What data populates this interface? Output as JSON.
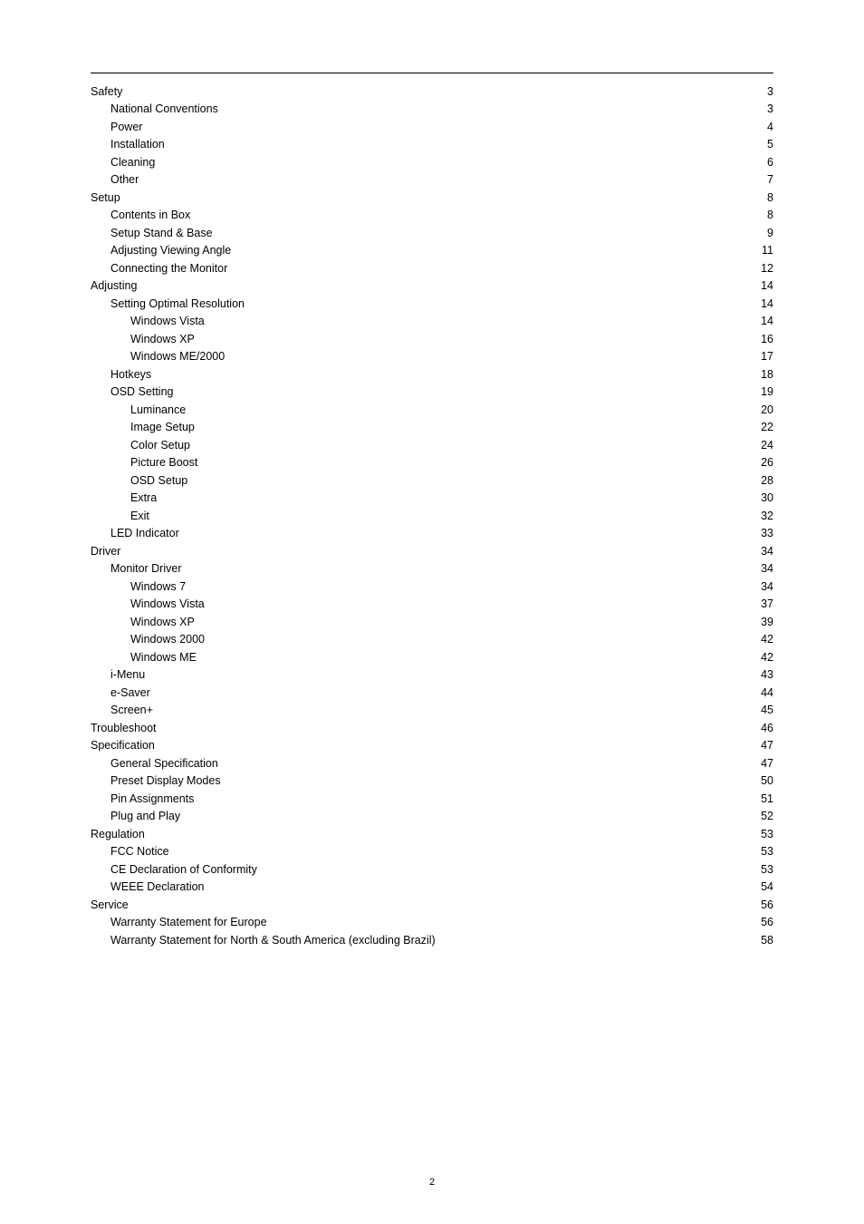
{
  "page_number": "2",
  "toc": [
    {
      "level": 0,
      "label": "Safety",
      "page": "3"
    },
    {
      "level": 1,
      "label": "National Conventions",
      "page": "3"
    },
    {
      "level": 1,
      "label": "Power",
      "page": "4"
    },
    {
      "level": 1,
      "label": "Installation",
      "page": "5"
    },
    {
      "level": 1,
      "label": "Cleaning",
      "page": "6"
    },
    {
      "level": 1,
      "label": "Other",
      "page": "7"
    },
    {
      "level": 0,
      "label": "Setup",
      "page": "8"
    },
    {
      "level": 1,
      "label": "Contents in Box",
      "page": "8"
    },
    {
      "level": 1,
      "label": "Setup Stand & Base",
      "page": "9"
    },
    {
      "level": 1,
      "label": "Adjusting Viewing Angle",
      "page": "11"
    },
    {
      "level": 1,
      "label": "Connecting the Monitor",
      "page": "12"
    },
    {
      "level": 0,
      "label": "Adjusting",
      "page": "14"
    },
    {
      "level": 1,
      "label": "Setting Optimal Resolution",
      "page": "14"
    },
    {
      "level": 2,
      "label": "Windows Vista",
      "page": "14"
    },
    {
      "level": 2,
      "label": "Windows XP",
      "page": "16"
    },
    {
      "level": 2,
      "label": "Windows ME/2000",
      "page": "17"
    },
    {
      "level": 1,
      "label": "Hotkeys",
      "page": "18"
    },
    {
      "level": 1,
      "label": "OSD Setting",
      "page": "19"
    },
    {
      "level": 2,
      "label": "Luminance",
      "page": "20"
    },
    {
      "level": 2,
      "label": "Image Setup",
      "page": "22"
    },
    {
      "level": 2,
      "label": "Color Setup",
      "page": "24"
    },
    {
      "level": 2,
      "label": "Picture Boost",
      "page": "26"
    },
    {
      "level": 2,
      "label": "OSD Setup",
      "page": "28"
    },
    {
      "level": 2,
      "label": "Extra",
      "page": "30"
    },
    {
      "level": 2,
      "label": "Exit",
      "page": "32"
    },
    {
      "level": 1,
      "label": "LED Indicator",
      "page": "33"
    },
    {
      "level": 0,
      "label": "Driver",
      "page": "34"
    },
    {
      "level": 1,
      "label": "Monitor Driver",
      "page": "34"
    },
    {
      "level": 2,
      "label": "Windows 7",
      "page": "34"
    },
    {
      "level": 2,
      "label": "Windows Vista",
      "page": "37"
    },
    {
      "level": 2,
      "label": "Windows XP",
      "page": "39"
    },
    {
      "level": 2,
      "label": "Windows 2000",
      "page": "42"
    },
    {
      "level": 2,
      "label": "Windows ME",
      "page": "42"
    },
    {
      "level": 1,
      "label": "i-Menu",
      "page": "43"
    },
    {
      "level": 1,
      "label": "e-Saver",
      "page": "44"
    },
    {
      "level": 1,
      "label": "Screen+",
      "page": "45"
    },
    {
      "level": 0,
      "label": "Troubleshoot",
      "page": "46"
    },
    {
      "level": 0,
      "label": "Specification",
      "page": "47"
    },
    {
      "level": 1,
      "label": "General Specification",
      "page": "47"
    },
    {
      "level": 1,
      "label": "Preset Display Modes",
      "page": "50"
    },
    {
      "level": 1,
      "label": "Pin Assignments",
      "page": "51"
    },
    {
      "level": 1,
      "label": "Plug and Play",
      "page": "52"
    },
    {
      "level": 0,
      "label": "Regulation",
      "page": "53"
    },
    {
      "level": 1,
      "label": "FCC Notice",
      "page": "53"
    },
    {
      "level": 1,
      "label": "CE Declaration of Conformity",
      "page": "53"
    },
    {
      "level": 1,
      "label": "WEEE Declaration",
      "page": "54"
    },
    {
      "level": 0,
      "label": "Service",
      "page": "56"
    },
    {
      "level": 1,
      "label": "Warranty Statement for Europe",
      "page": "56"
    },
    {
      "level": 1,
      "label": "Warranty Statement for North & South America (excluding Brazil)",
      "page": "58"
    }
  ]
}
